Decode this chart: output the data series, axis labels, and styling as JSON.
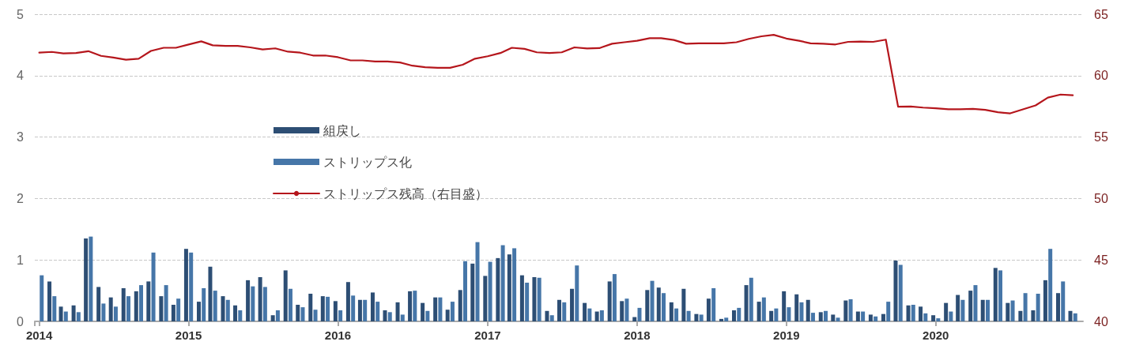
{
  "chart_data": {
    "type": "bar",
    "x": [
      "2014-01",
      "2014-02",
      "2014-03",
      "2014-04",
      "2014-05",
      "2014-06",
      "2014-07",
      "2014-08",
      "2014-09",
      "2014-10",
      "2014-11",
      "2014-12",
      "2015-01",
      "2015-02",
      "2015-03",
      "2015-04",
      "2015-05",
      "2015-06",
      "2015-07",
      "2015-08",
      "2015-09",
      "2015-10",
      "2015-11",
      "2015-12",
      "2016-01",
      "2016-02",
      "2016-03",
      "2016-04",
      "2016-05",
      "2016-06",
      "2016-07",
      "2016-08",
      "2016-09",
      "2016-10",
      "2016-11",
      "2016-12",
      "2017-01",
      "2017-02",
      "2017-03",
      "2017-04",
      "2017-05",
      "2017-06",
      "2017-07",
      "2017-08",
      "2017-09",
      "2017-10",
      "2017-11",
      "2017-12",
      "2018-01",
      "2018-02",
      "2018-03",
      "2018-04",
      "2018-05",
      "2018-06",
      "2018-07",
      "2018-08",
      "2018-09",
      "2018-10",
      "2018-11",
      "2018-12",
      "2019-01",
      "2019-02",
      "2019-03",
      "2019-04",
      "2019-05",
      "2019-06",
      "2019-07",
      "2019-08",
      "2019-09",
      "2019-10",
      "2019-11",
      "2019-12",
      "2020-01",
      "2020-02",
      "2020-03",
      "2020-04",
      "2020-05",
      "2020-06",
      "2020-07",
      "2020-08",
      "2020-09",
      "2020-10",
      "2020-11",
      "2020-12"
    ],
    "series": [
      {
        "name": "組戻し",
        "color": "#2d4e74",
        "values": [
          null,
          0.65,
          0.24,
          0.26,
          1.35,
          0.56,
          0.39,
          0.54,
          0.49,
          0.65,
          0.41,
          0.27,
          1.18,
          0.32,
          0.89,
          0.41,
          0.26,
          0.67,
          0.72,
          0.1,
          0.83,
          0.27,
          0.45,
          0.41,
          0.33,
          0.64,
          0.35,
          0.47,
          0.18,
          0.31,
          0.49,
          0.3,
          0.39,
          0.19,
          0.51,
          0.94,
          0.74,
          1.03,
          1.09,
          0.75,
          0.72,
          0.17,
          0.35,
          0.53,
          0.3,
          0.16,
          0.65,
          0.33,
          0.07,
          0.51,
          0.55,
          0.31,
          0.53,
          0.12,
          0.37,
          0.04,
          0.18,
          0.59,
          0.32,
          0.17,
          0.49,
          0.44,
          0.35,
          0.15,
          0.11,
          0.34,
          0.16,
          0.11,
          0.12,
          0.99,
          0.26,
          0.24,
          0.1,
          0.3,
          0.43,
          0.5,
          0.35,
          0.87,
          0.3,
          0.17,
          0.18,
          0.67,
          0.46,
          0.17
        ]
      },
      {
        "name": "ストリップス化",
        "color": "#4676a8",
        "values": [
          0.75,
          0.41,
          0.16,
          0.15,
          1.38,
          0.29,
          0.24,
          0.41,
          0.59,
          1.12,
          0.59,
          0.37,
          1.12,
          0.54,
          0.5,
          0.35,
          0.18,
          0.57,
          0.56,
          0.18,
          0.53,
          0.23,
          0.19,
          0.4,
          0.18,
          0.42,
          0.35,
          0.32,
          0.15,
          0.11,
          0.5,
          0.17,
          0.39,
          0.32,
          0.98,
          1.29,
          0.97,
          1.24,
          1.19,
          0.63,
          0.71,
          0.1,
          0.31,
          0.91,
          0.21,
          0.18,
          0.77,
          0.37,
          0.22,
          0.66,
          0.46,
          0.21,
          0.17,
          0.11,
          0.54,
          0.06,
          0.22,
          0.71,
          0.39,
          0.21,
          0.23,
          0.31,
          0.14,
          0.17,
          0.06,
          0.36,
          0.16,
          0.08,
          0.32,
          0.92,
          0.27,
          0.13,
          0.05,
          0.16,
          0.35,
          0.59,
          0.35,
          0.83,
          0.34,
          0.46,
          0.45,
          1.18,
          0.65,
          0.13
        ]
      },
      {
        "name": "ストリップス残高（右目盛）",
        "type": "line",
        "axis": "y2",
        "color": "#b5161c",
        "values": [
          61.87,
          61.93,
          61.81,
          61.84,
          61.99,
          61.61,
          61.47,
          61.3,
          61.38,
          62.01,
          62.27,
          62.27,
          62.53,
          62.79,
          62.47,
          62.42,
          62.42,
          62.3,
          62.13,
          62.22,
          61.95,
          61.87,
          61.64,
          61.64,
          61.5,
          61.24,
          61.24,
          61.15,
          61.15,
          61.07,
          60.81,
          60.69,
          60.64,
          60.64,
          60.89,
          61.38,
          61.58,
          61.84,
          62.27,
          62.18,
          61.9,
          61.84,
          61.9,
          62.3,
          62.21,
          62.24,
          62.6,
          62.72,
          62.84,
          63.05,
          63.05,
          62.9,
          62.6,
          62.63,
          62.63,
          62.63,
          62.72,
          62.99,
          63.2,
          63.32,
          63.02,
          62.84,
          62.63,
          62.6,
          62.54,
          62.75,
          62.78,
          62.75,
          62.93,
          57.47,
          57.49,
          57.4,
          57.35,
          57.26,
          57.26,
          57.29,
          57.22,
          57.02,
          56.93,
          57.26,
          57.58,
          58.21,
          58.46,
          58.4
        ]
      }
    ],
    "xlim": [
      "2014-01",
      "2020-12-15"
    ],
    "xticks": [
      "2014",
      "2015",
      "2016",
      "2017",
      "2018",
      "2019",
      "2020"
    ],
    "ylim": [
      0,
      5
    ],
    "yticks": [
      0,
      1,
      2,
      3,
      4,
      5
    ],
    "y2lim": [
      40,
      65
    ],
    "y2ticks": [
      40,
      45,
      50,
      55,
      60,
      65
    ],
    "grid": "y",
    "legend": "left",
    "marker": "none",
    "line_style": "solid"
  }
}
